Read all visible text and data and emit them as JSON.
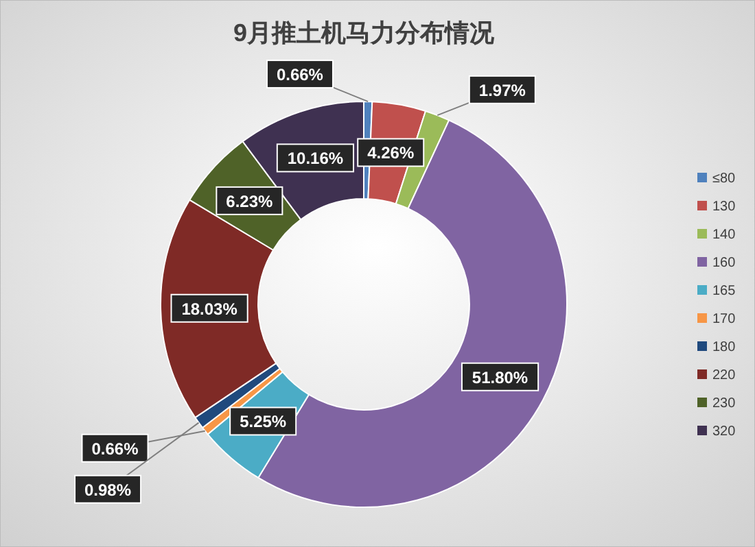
{
  "chart_data": {
    "type": "donut",
    "title": "9月推土机马力分布情况",
    "categories": [
      "≤80",
      "130",
      "140",
      "160",
      "165",
      "170",
      "180",
      "220",
      "230",
      "320"
    ],
    "values": [
      0.66,
      4.26,
      1.97,
      51.8,
      5.25,
      0.66,
      0.98,
      18.03,
      6.23,
      10.16
    ],
    "colors": [
      "#4f81bd",
      "#c0504d",
      "#9bbb59",
      "#8064a2",
      "#4bacc6",
      "#f79646",
      "#1f497d",
      "#7f2a26",
      "#4f6228",
      "#3f3151"
    ],
    "value_labels": [
      "0.66%",
      "4.26%",
      "1.97%",
      "51.80%",
      "5.25%",
      "0.66%",
      "0.98%",
      "18.03%",
      "6.23%",
      "10.16%"
    ],
    "legend": "right"
  }
}
